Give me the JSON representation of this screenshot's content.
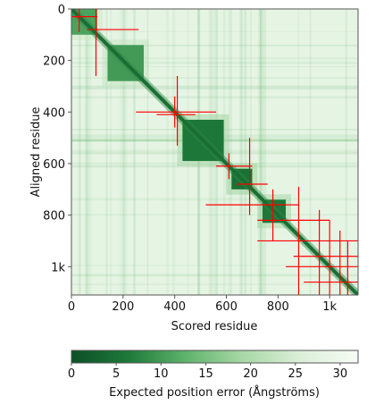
{
  "chart_data": {
    "type": "heatmap",
    "xlabel": "Scored residue",
    "ylabel": "Aligned residue",
    "xlim": [
      0,
      1110
    ],
    "ylim": [
      0,
      1110
    ],
    "x_ticks": [
      {
        "value": 0,
        "label": "0"
      },
      {
        "value": 200,
        "label": "200"
      },
      {
        "value": 400,
        "label": "400"
      },
      {
        "value": 600,
        "label": "600"
      },
      {
        "value": 800,
        "label": "800"
      },
      {
        "value": 1000,
        "label": "1k"
      }
    ],
    "y_ticks": [
      {
        "value": 0,
        "label": "0"
      },
      {
        "value": 200,
        "label": "200"
      },
      {
        "value": 400,
        "label": "400"
      },
      {
        "value": 600,
        "label": "600"
      },
      {
        "value": 800,
        "label": "800"
      },
      {
        "value": 1000,
        "label": "1k"
      }
    ],
    "colorbar": {
      "label": "Expected position error (Ångströms)",
      "range": [
        0,
        32
      ],
      "ticks": [
        {
          "value": 0,
          "label": "0"
        },
        {
          "value": 5,
          "label": "5"
        },
        {
          "value": 10,
          "label": "10"
        },
        {
          "value": 15,
          "label": "15"
        },
        {
          "value": 20,
          "label": "20"
        },
        {
          "value": 25,
          "label": "25"
        },
        {
          "value": 30,
          "label": "30"
        }
      ],
      "colors": [
        "#0b4f26",
        "#1e7a3a",
        "#5fb36c",
        "#a9d8a6",
        "#dcefd9",
        "#f7fcf5"
      ]
    },
    "background_error": 28,
    "diagonal_error": 1,
    "diagonal_color": "#1a6e34",
    "domains": [
      {
        "start": 0,
        "end": 100,
        "error": 11
      },
      {
        "start": 140,
        "end": 280,
        "error": 10
      },
      {
        "start": 430,
        "end": 590,
        "error": 6
      },
      {
        "start": 620,
        "end": 700,
        "error": 5
      },
      {
        "start": 740,
        "end": 830,
        "error": 6
      }
    ],
    "error_bar_color": "#ff0000",
    "error_bars": [
      {
        "x": 30,
        "y": 30,
        "x_low": 0,
        "x_high": 100,
        "y_low": 0,
        "y_high": 90
      },
      {
        "x": 95,
        "y": 80,
        "x_low": 60,
        "x_high": 260,
        "y_low": 0,
        "y_high": 260
      },
      {
        "x": 410,
        "y": 400,
        "x_low": 250,
        "x_high": 560,
        "y_low": 260,
        "y_high": 530
      },
      {
        "x": 400,
        "y": 410,
        "x_low": 330,
        "x_high": 480,
        "y_low": 340,
        "y_high": 460
      },
      {
        "x": 610,
        "y": 610,
        "x_low": 560,
        "x_high": 700,
        "y_low": 560,
        "y_high": 660
      },
      {
        "x": 690,
        "y": 680,
        "x_low": 640,
        "x_high": 760,
        "y_low": 500,
        "y_high": 800
      },
      {
        "x": 780,
        "y": 760,
        "x_low": 520,
        "x_high": 880,
        "y_low": 700,
        "y_high": 900
      },
      {
        "x": 880,
        "y": 820,
        "x_low": 720,
        "x_high": 1000,
        "y_low": 690,
        "y_high": 1110
      },
      {
        "x": 960,
        "y": 900,
        "x_low": 720,
        "x_high": 1110,
        "y_low": 780,
        "y_high": 1110
      },
      {
        "x": 1000,
        "y": 960,
        "x_low": 860,
        "x_high": 1110,
        "y_low": 820,
        "y_high": 1110
      },
      {
        "x": 1040,
        "y": 1000,
        "x_low": 830,
        "x_high": 1110,
        "y_low": 860,
        "y_high": 1110
      },
      {
        "x": 1070,
        "y": 1060,
        "x_low": 900,
        "x_high": 1110,
        "y_low": 900,
        "y_high": 1110
      }
    ]
  }
}
